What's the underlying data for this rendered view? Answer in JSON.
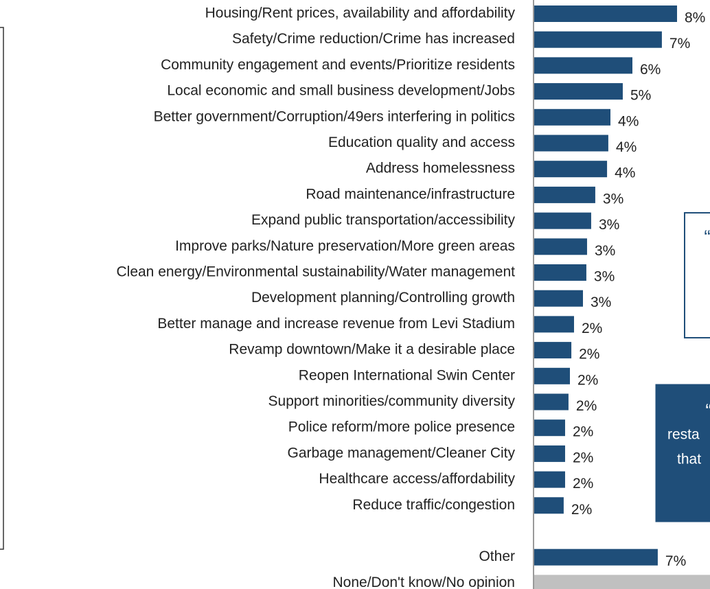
{
  "chart_data": {
    "type": "hbar",
    "categories": [
      "Housing/Rent prices, availability and affordability",
      "Safety/Crime reduction/Crime has increased",
      "Community engagement and events/Prioritize residents",
      "Local economic and small business development/Jobs",
      "Better government/Corruption/49ers interfering in politics",
      "Education quality and access",
      "Address homelessness",
      "Road maintenance/infrastructure",
      "Expand public transportation/accessibility",
      "Improve parks/Nature preservation/More green areas",
      "Clean energy/Environmental sustainability/Water management",
      "Development planning/Controlling growth",
      "Better manage and increase revenue from Levi Stadium",
      "Revamp downtown/Make it a desirable place",
      "Reopen International Swin Center",
      "Support minorities/community diversity",
      "Police reform/more police presence",
      "Garbage management/Cleaner City",
      "Healthcare access/affordability",
      "Reduce traffic/congestion",
      null,
      "Other",
      "None/Don't know/No opinion"
    ],
    "values": [
      8.0,
      7.15,
      5.5,
      4.96,
      4.27,
      4.15,
      4.08,
      3.42,
      3.19,
      2.96,
      2.92,
      2.73,
      2.23,
      2.08,
      2.0,
      1.92,
      1.73,
      1.73,
      1.73,
      1.65,
      null,
      6.92,
      11
    ],
    "value_labels": [
      "8%",
      "7%",
      "6%",
      "5%",
      "4%",
      "4%",
      "4%",
      "3%",
      "3%",
      "3%",
      "3%",
      "3%",
      "2%",
      "2%",
      "2%",
      "2%",
      "2%",
      "2%",
      "2%",
      "2%",
      null,
      "7%",
      null
    ],
    "colors": [
      "#1f4e79",
      "#1f4e79",
      "#1f4e79",
      "#1f4e79",
      "#1f4e79",
      "#1f4e79",
      "#1f4e79",
      "#1f4e79",
      "#1f4e79",
      "#1f4e79",
      "#1f4e79",
      "#1f4e79",
      "#1f4e79",
      "#1f4e79",
      "#1f4e79",
      "#1f4e79",
      "#1f4e79",
      "#1f4e79",
      "#1f4e79",
      "#1f4e79",
      null,
      "#1f4e79",
      "#c0c0c0"
    ],
    "annotations": [
      "“",
      "“",
      "resta",
      "that"
    ]
  }
}
